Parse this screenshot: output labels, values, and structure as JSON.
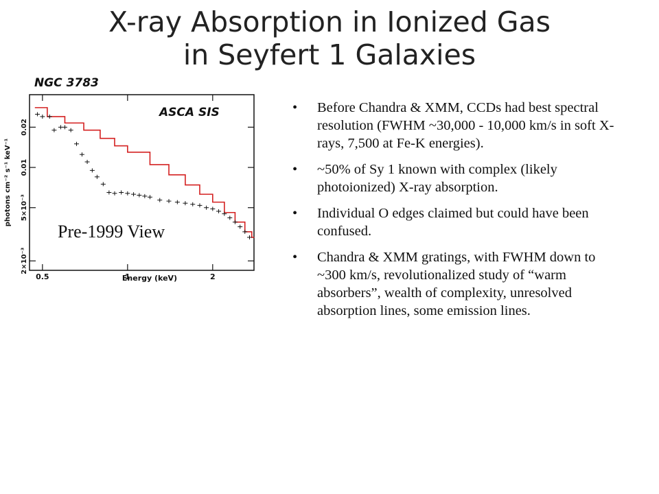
{
  "slide": {
    "title_line1": "X-ray Absorption in Ionized Gas",
    "title_line2": "in Seyfert 1 Galaxies"
  },
  "figure": {
    "object_label": "NGC 3783",
    "instrument_label": "ASCA SIS",
    "overlay_caption": "Pre-1999 View",
    "ylabel": "photons cm⁻² s⁻¹ keV⁻¹",
    "xlabel": "Energy (keV)",
    "xticks": [
      "0.5",
      "1",
      "2"
    ],
    "yticks": [
      "2×10⁻³",
      "5×10⁻³",
      "0.01",
      "0.02"
    ],
    "colors": {
      "model": "#d42020",
      "data": "#111111"
    }
  },
  "chart_data": {
    "type": "line",
    "xlabel": "Energy (keV)",
    "ylabel": "photons cm⁻² s⁻¹ keV⁻¹",
    "xscale": "log",
    "yscale": "log",
    "xlim": [
      0.45,
      2.8
    ],
    "ylim": [
      0.0017,
      0.035
    ],
    "xticks": [
      0.5,
      1,
      2
    ],
    "yticks": [
      0.002,
      0.005,
      0.01,
      0.02
    ],
    "series": [
      {
        "style": "step",
        "x": [
          0.47,
          0.52,
          0.6,
          0.7,
          0.8,
          0.9,
          1.0,
          1.2,
          1.4,
          1.6,
          1.8,
          2.0,
          2.2,
          2.4,
          2.6,
          2.75
        ],
        "y": [
          0.028,
          0.024,
          0.0215,
          0.019,
          0.0165,
          0.0145,
          0.013,
          0.0105,
          0.0088,
          0.0074,
          0.0063,
          0.0055,
          0.0046,
          0.0039,
          0.0033,
          0.003
        ]
      },
      {
        "style": "points",
        "x": [
          0.48,
          0.5,
          0.53,
          0.55,
          0.58,
          0.6,
          0.63,
          0.66,
          0.69,
          0.72,
          0.75,
          0.78,
          0.82,
          0.86,
          0.9,
          0.95,
          1.0,
          1.05,
          1.1,
          1.15,
          1.2,
          1.3,
          1.4,
          1.5,
          1.6,
          1.7,
          1.8,
          1.9,
          2.0,
          2.1,
          2.2,
          2.3,
          2.4,
          2.5,
          2.6,
          2.7
        ],
        "y": [
          0.025,
          0.024,
          0.024,
          0.019,
          0.02,
          0.02,
          0.019,
          0.015,
          0.0125,
          0.011,
          0.0095,
          0.0085,
          0.0075,
          0.0065,
          0.0064,
          0.0065,
          0.0064,
          0.0063,
          0.0062,
          0.0061,
          0.006,
          0.0057,
          0.0056,
          0.0055,
          0.0054,
          0.0053,
          0.0052,
          0.005,
          0.0049,
          0.0047,
          0.0045,
          0.0042,
          0.0039,
          0.0036,
          0.0033,
          0.003
        ]
      }
    ]
  },
  "bullets": [
    "Before Chandra & XMM, CCDs had best spectral resolution (FWHM ~30,000 - 10,000 km/s in soft X-rays, 7,500 at Fe-K energies).",
    "~50% of Sy 1 known with complex (likely photoionized) X-ray absorption.",
    "Individual O edges claimed but could have been confused.",
    "Chandra & XMM gratings, with FWHM down to ~300 km/s, revolutionalized study of “warm absorbers”, wealth of complexity, unresolved absorption lines, some emission lines."
  ],
  "bullet_symbol": "•"
}
